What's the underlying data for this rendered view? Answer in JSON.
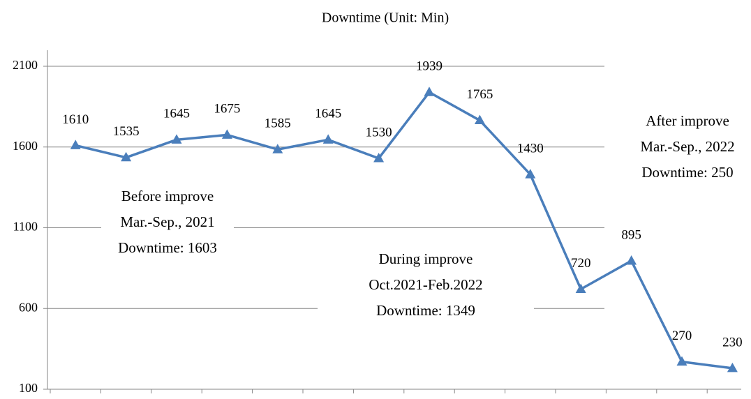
{
  "chart_data": {
    "type": "line",
    "title": "Downtime (Unit: Min)",
    "categories": [
      null,
      null,
      null,
      null,
      null,
      null,
      null,
      null,
      null,
      null,
      null,
      null,
      null,
      null
    ],
    "series": [
      {
        "name": "Downtime",
        "color": "#4a7ebb",
        "values": [
          1610,
          1535,
          1645,
          1675,
          1585,
          1645,
          1530,
          1939,
          1765,
          1430,
          720,
          895,
          270,
          230
        ]
      }
    ],
    "ylim": [
      100,
      2100
    ],
    "yticks": [
      100,
      600,
      1100,
      1600,
      2100
    ],
    "grid": true,
    "annotations": [
      {
        "lines": [
          "Before improve",
          "Mar.-Sep., 2021",
          "Downtime: 1603"
        ]
      },
      {
        "lines": [
          "During improve",
          "Oct.2021-Feb.2022",
          "Downtime: 1349"
        ]
      },
      {
        "lines": [
          "After improve",
          "Mar.-Sep., 2022",
          "Downtime: 250"
        ]
      }
    ]
  }
}
